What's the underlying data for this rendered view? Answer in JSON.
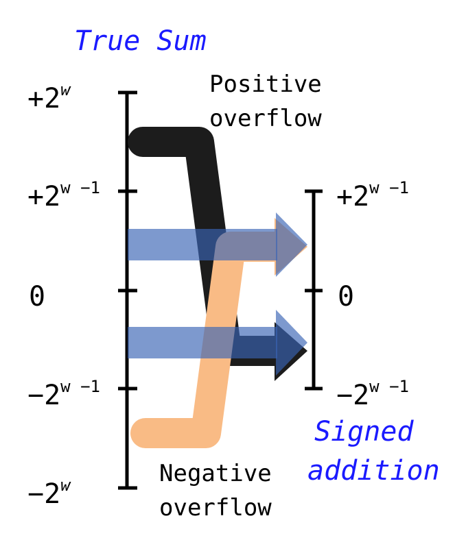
{
  "titles": {
    "true_sum": "True Sum",
    "signed_addition_line1": "Signed",
    "signed_addition_line2": "addition"
  },
  "annotations": {
    "positive_line1": "Positive",
    "positive_line2": "overflow",
    "negative_line1": "Negative",
    "negative_line2": "overflow"
  },
  "left_axis": {
    "top": {
      "base": "+2",
      "exp": "w"
    },
    "upper_mid": {
      "base": "+2",
      "exp": "w −1"
    },
    "zero": {
      "base": "0",
      "exp": ""
    },
    "lower_mid": {
      "base": "−2",
      "exp": "w −1"
    },
    "bottom": {
      "base": "−2",
      "exp": "w"
    }
  },
  "right_axis": {
    "top": {
      "base": "+2",
      "exp": "w −1"
    },
    "zero": {
      "base": "0",
      "exp": ""
    },
    "bottom": {
      "base": "−2",
      "exp": "w −1"
    }
  },
  "colors": {
    "positive_overflow": "#1c1c1c",
    "negative_overflow": "#f9bb85",
    "normal_range": "#5b7fc0",
    "axis": "#000000",
    "title": "#1a1aff"
  }
}
